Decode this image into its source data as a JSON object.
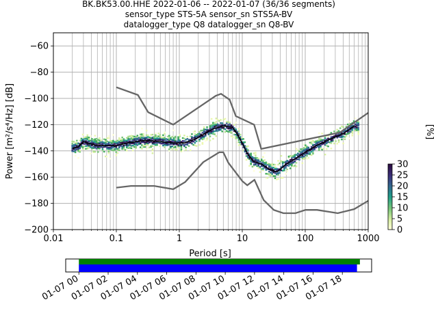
{
  "chart_data": {
    "type": "heatmap",
    "title": {
      "line1": "BK.BK53.00.HHE   2022-01-06 -- 2022-01-07  (36/36 segments)",
      "line2": "sensor_type STS-5A sensor_sn STS5A-BV",
      "line3": "datalogger_type Q8 datalogger_sn Q8-BV"
    },
    "xlabel": "Period [s]",
    "ylabel": "Power [m²/s⁴/Hz] [dB]",
    "x_scale": "log",
    "xlim": [
      0.01,
      1000
    ],
    "ylim": [
      -200,
      -50
    ],
    "x_ticks": [
      {
        "v": 0.01,
        "label": "0.01"
      },
      {
        "v": 0.1,
        "label": "0.1"
      },
      {
        "v": 1,
        "label": "1"
      },
      {
        "v": 10,
        "label": "10"
      },
      {
        "v": 100,
        "label": "100"
      },
      {
        "v": 1000,
        "label": "1000"
      }
    ],
    "y_ticks": [
      {
        "v": -60,
        "label": "−60"
      },
      {
        "v": -80,
        "label": "−80"
      },
      {
        "v": -100,
        "label": "−100"
      },
      {
        "v": -120,
        "label": "−120"
      },
      {
        "v": -140,
        "label": "−140"
      },
      {
        "v": -160,
        "label": "−160"
      },
      {
        "v": -180,
        "label": "−180"
      },
      {
        "v": -200,
        "label": "−200"
      }
    ],
    "grid": true,
    "colorbar": {
      "label": "[%]",
      "min": 0,
      "max": 30,
      "ticks": [
        {
          "v": 0,
          "label": "0"
        },
        {
          "v": 5,
          "label": "5"
        },
        {
          "v": 10,
          "label": "10"
        },
        {
          "v": 15,
          "label": "15"
        },
        {
          "v": 20,
          "label": "20"
        },
        {
          "v": 25,
          "label": "25"
        },
        {
          "v": 30,
          "label": "30"
        }
      ]
    },
    "nhnm": [
      [
        0.1,
        -91.5
      ],
      [
        0.22,
        -97.4
      ],
      [
        0.32,
        -110.5
      ],
      [
        0.8,
        -120.0
      ],
      [
        3.8,
        -98.0
      ],
      [
        4.6,
        -96.5
      ],
      [
        6.3,
        -101.0
      ],
      [
        7.9,
        -113.5
      ],
      [
        15.4,
        -120.0
      ],
      [
        20,
        -138.5
      ],
      [
        354.8,
        -126.0
      ],
      [
        1000,
        -111.0
      ]
    ],
    "nlnm": [
      [
        0.1,
        -168.0
      ],
      [
        0.17,
        -166.7
      ],
      [
        0.4,
        -166.7
      ],
      [
        0.8,
        -169.2
      ],
      [
        1.24,
        -163.7
      ],
      [
        2.4,
        -148.6
      ],
      [
        4.3,
        -141.1
      ],
      [
        5.0,
        -141.1
      ],
      [
        6.0,
        -149.0
      ],
      [
        10.0,
        -163.0
      ],
      [
        12.0,
        -166.2
      ],
      [
        15.6,
        -162.1
      ],
      [
        21.9,
        -177.5
      ],
      [
        31.6,
        -185.0
      ],
      [
        45,
        -187.5
      ],
      [
        70,
        -187.5
      ],
      [
        101,
        -185.0
      ],
      [
        154,
        -185.0
      ],
      [
        328,
        -187.5
      ],
      [
        600,
        -184.4
      ],
      [
        1000,
        -178.0
      ]
    ],
    "mean_curve": [
      [
        0.02,
        -138
      ],
      [
        0.025,
        -137
      ],
      [
        0.03,
        -133
      ],
      [
        0.035,
        -134
      ],
      [
        0.05,
        -136
      ],
      [
        0.1,
        -136
      ],
      [
        0.15,
        -134
      ],
      [
        0.2,
        -133
      ],
      [
        0.3,
        -132
      ],
      [
        0.5,
        -133
      ],
      [
        0.8,
        -134
      ],
      [
        1.2,
        -134
      ],
      [
        1.8,
        -131
      ],
      [
        2.5,
        -127
      ],
      [
        3.5,
        -123
      ],
      [
        5,
        -121
      ],
      [
        7,
        -122
      ],
      [
        8,
        -126
      ],
      [
        10,
        -134
      ],
      [
        12,
        -142
      ],
      [
        15,
        -148
      ],
      [
        20,
        -150
      ],
      [
        25,
        -153
      ],
      [
        30,
        -155
      ],
      [
        35,
        -156
      ],
      [
        40,
        -154
      ],
      [
        50,
        -150
      ],
      [
        70,
        -146
      ],
      [
        100,
        -141
      ],
      [
        150,
        -136
      ],
      [
        250,
        -131
      ],
      [
        400,
        -127
      ],
      [
        600,
        -121
      ]
    ],
    "time_axis": {
      "ticks": [
        "01-07 00",
        "01-07 02",
        "01-07 04",
        "01-07 06",
        "01-07 08",
        "01-07 10",
        "01-07 12",
        "01-07 14",
        "01-07 16",
        "01-07 18"
      ],
      "data_coverage": {
        "start_hour": 0,
        "end_hour": 19.0,
        "color": "#0000ff"
      },
      "gaps_coverage": {
        "start_hour": 0,
        "end_hour": 19.2,
        "color": "#008000"
      },
      "axis_range_hours": [
        -0.9,
        20.0
      ]
    }
  }
}
